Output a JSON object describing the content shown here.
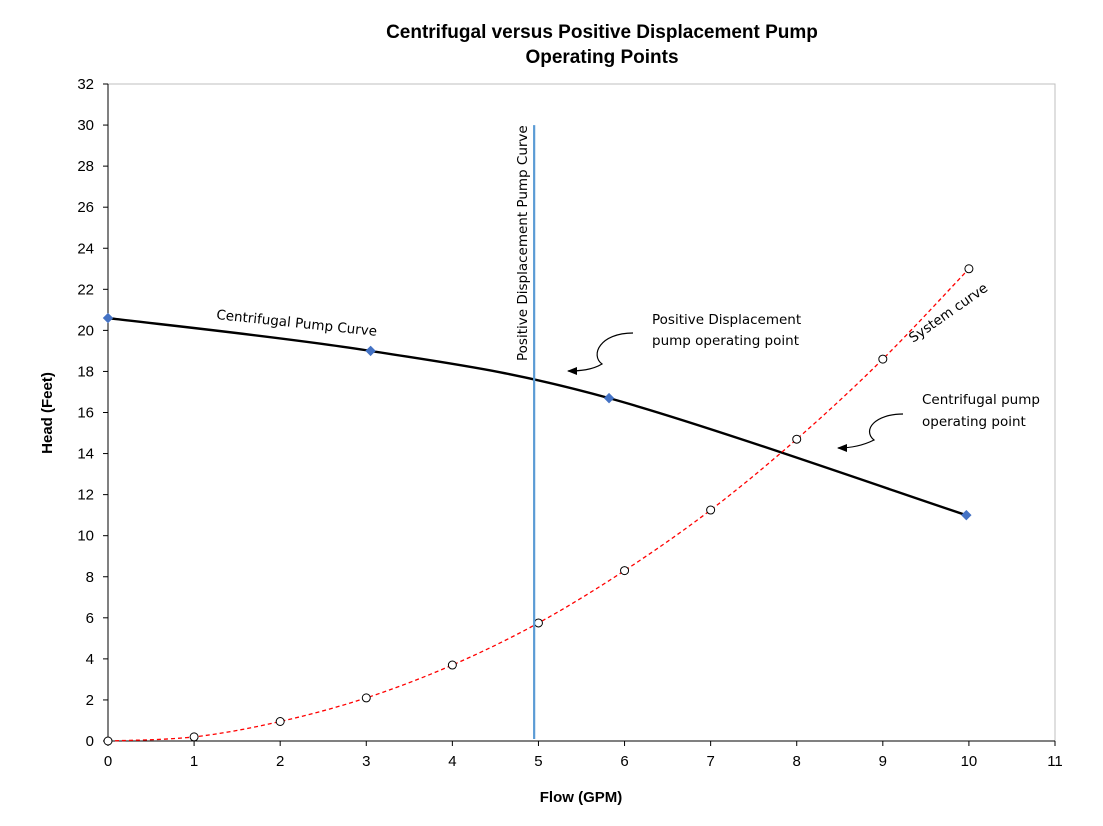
{
  "chart_data": {
    "type": "line",
    "title": "Centrifugal versus Positive Displacement Pump",
    "subtitle": "Operating Points",
    "xlabel": "Flow (GPM)",
    "ylabel": "Head (Feet)",
    "xlim": [
      0,
      11
    ],
    "ylim": [
      0,
      32
    ],
    "x_ticks": [
      "0",
      "1",
      "2",
      "3",
      "4",
      "5",
      "6",
      "7",
      "8",
      "9",
      "10",
      "11"
    ],
    "y_ticks": [
      "0",
      "2",
      "4",
      "6",
      "8",
      "10",
      "12",
      "14",
      "16",
      "18",
      "20",
      "22",
      "24",
      "26",
      "28",
      "30",
      "32"
    ],
    "grid": false,
    "series": [
      {
        "name": "Centrifugal Pump Curve",
        "style": "solid",
        "color": "#000000",
        "marker": "diamond",
        "marker_color": "#4472c4",
        "x": [
          0,
          3.05,
          5.82,
          9.97
        ],
        "y": [
          20.6,
          19.0,
          16.7,
          11.0
        ]
      },
      {
        "name": "System curve",
        "style": "dashed",
        "color": "#ff0000",
        "marker": "circle-open",
        "marker_color": "#000000",
        "x": [
          0,
          1,
          2,
          3,
          4,
          5,
          6,
          7,
          8,
          9,
          10
        ],
        "y": [
          0,
          0.2,
          0.95,
          2.1,
          3.7,
          5.75,
          8.3,
          11.25,
          14.7,
          18.6,
          23.0
        ]
      },
      {
        "name": "Positive Displacement Pump Curve",
        "style": "solid",
        "color": "#5b9bd5",
        "marker": "none",
        "x": [
          4.95,
          4.95
        ],
        "y": [
          0.1,
          30.0
        ]
      }
    ],
    "annotations": [
      {
        "id": "pd_point",
        "lines": [
          "Positive Displacement",
          "pump operating point"
        ],
        "target_x": 5.35,
        "target_y": 18.3
      },
      {
        "id": "cf_point",
        "lines": [
          "Centrifugal pump",
          "operating point"
        ],
        "target_x": 8.5,
        "target_y": 14.1
      }
    ]
  }
}
